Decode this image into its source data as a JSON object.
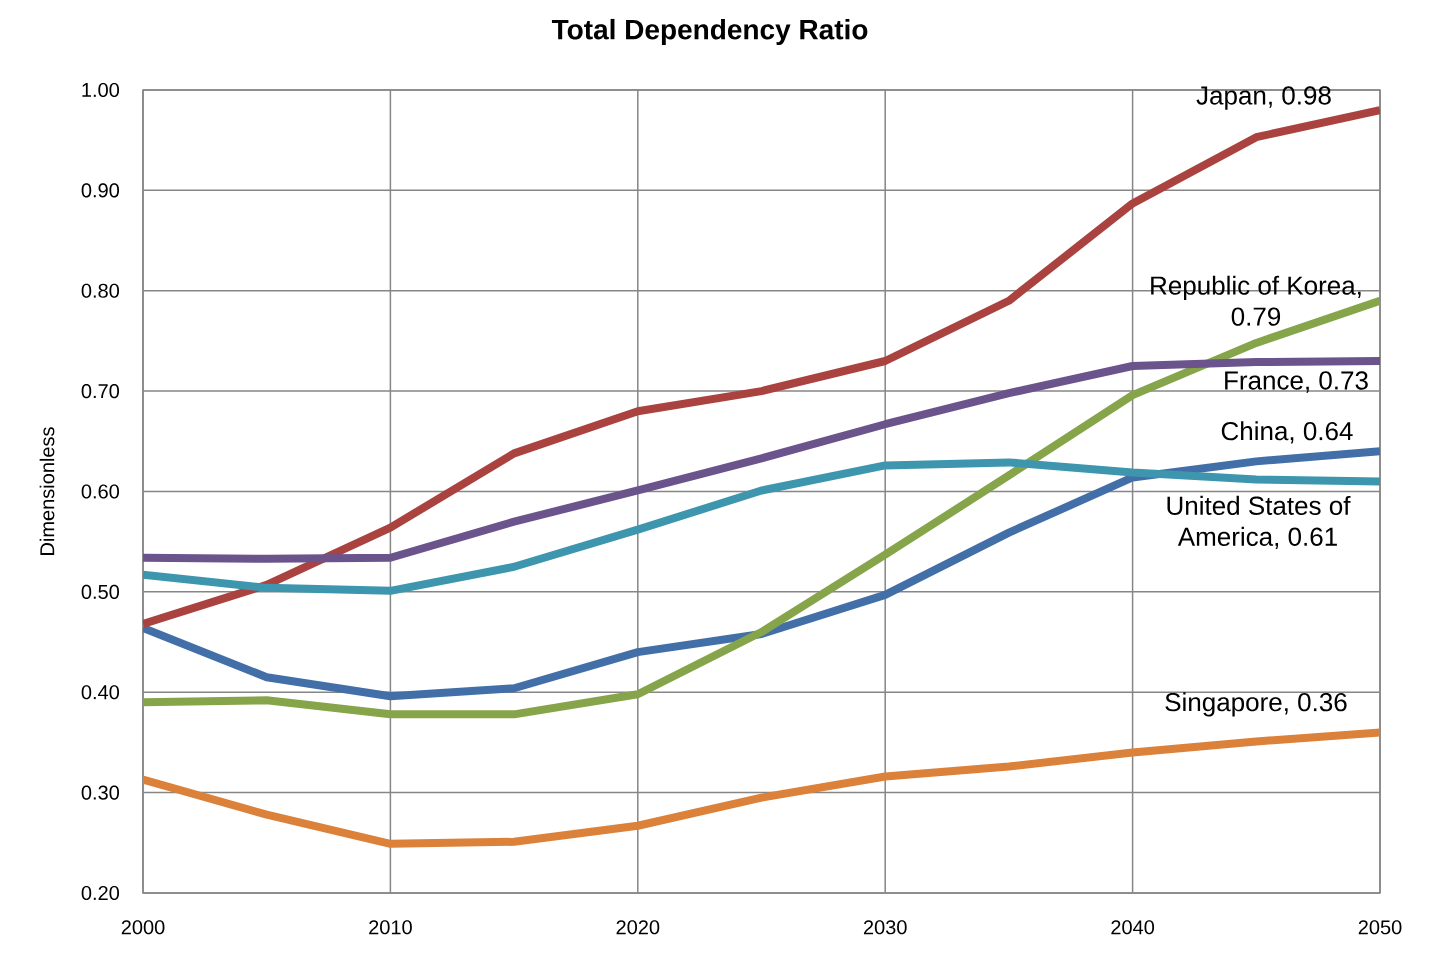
{
  "chart_data": {
    "type": "line",
    "title": "Total Dependency Ratio",
    "ylabel": "Dimensionless",
    "x": [
      2000,
      2005,
      2010,
      2015,
      2020,
      2025,
      2030,
      2035,
      2040,
      2045,
      2050
    ],
    "xlim": [
      2000,
      2050
    ],
    "xticks": [
      2000,
      2010,
      2020,
      2030,
      2040,
      2050
    ],
    "ylim": [
      0.2,
      1.0
    ],
    "yticks": [
      {
        "value": 0.2,
        "label": "0.20"
      },
      {
        "value": 0.3,
        "label": "0.30"
      },
      {
        "value": 0.4,
        "label": "0.40"
      },
      {
        "value": 0.5,
        "label": "0.50"
      },
      {
        "value": 0.6,
        "label": "0.60"
      },
      {
        "value": 0.7,
        "label": "0.70"
      },
      {
        "value": 0.8,
        "label": "0.80"
      },
      {
        "value": 0.9,
        "label": "0.90"
      },
      {
        "value": 1.0,
        "label": "1.00"
      }
    ],
    "grid": true,
    "series": [
      {
        "color": "#426fa8",
        "values": [
          0.464,
          0.415,
          0.396,
          0.404,
          0.44,
          0.458,
          0.497,
          0.559,
          0.614,
          0.63,
          0.64
        ],
        "value_labels": [
          null,
          null,
          null,
          null,
          null,
          null,
          null,
          null,
          null,
          null,
          "China, 0.64"
        ]
      },
      {
        "color": "#aa4340",
        "values": [
          0.468,
          0.507,
          0.564,
          0.638,
          0.68,
          0.7,
          0.73,
          0.79,
          0.887,
          0.953,
          0.98
        ],
        "value_labels": [
          null,
          null,
          null,
          null,
          null,
          null,
          null,
          null,
          null,
          null,
          "Japan, 0.98"
        ]
      },
      {
        "color": "#86a54a",
        "values": [
          0.39,
          0.392,
          0.378,
          0.378,
          0.398,
          0.46,
          0.537,
          0.616,
          0.696,
          0.748,
          0.79
        ],
        "value_labels": [
          null,
          null,
          null,
          null,
          null,
          null,
          null,
          null,
          null,
          null,
          "Republic of Korea, 0.79"
        ]
      },
      {
        "color": "#6b538c",
        "values": [
          0.534,
          0.533,
          0.534,
          0.57,
          0.601,
          0.633,
          0.667,
          0.698,
          0.725,
          0.729,
          0.73
        ],
        "value_labels": [
          null,
          null,
          null,
          null,
          null,
          null,
          null,
          null,
          null,
          null,
          "France, 0.73"
        ]
      },
      {
        "color": "#3d96ae",
        "values": [
          0.517,
          0.504,
          0.501,
          0.525,
          0.562,
          0.601,
          0.626,
          0.629,
          0.619,
          0.612,
          0.61
        ],
        "value_labels": [
          null,
          null,
          null,
          null,
          null,
          null,
          null,
          null,
          null,
          null,
          "United States of America, 0.61"
        ]
      },
      {
        "color": "#db8139",
        "values": [
          0.313,
          0.278,
          0.249,
          0.251,
          0.267,
          0.295,
          0.316,
          0.326,
          0.34,
          0.351,
          0.36
        ],
        "value_labels": [
          null,
          null,
          null,
          null,
          null,
          null,
          null,
          null,
          null,
          null,
          "Singapore, 0.36"
        ]
      }
    ]
  }
}
